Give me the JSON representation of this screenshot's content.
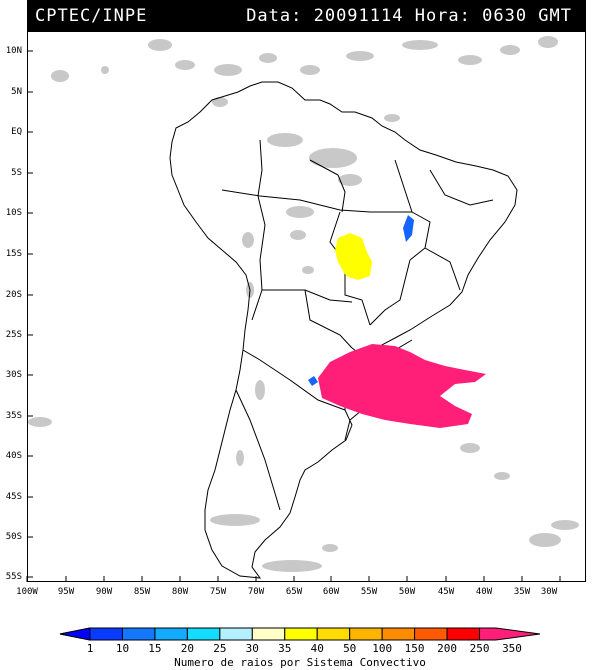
{
  "header": {
    "source": "CPTEC/INPE",
    "datetime": "Data: 20091114 Hora: 0630 GMT"
  },
  "map": {
    "lat_labels": [
      "10N",
      "5N",
      "EQ",
      "5S",
      "10S",
      "15S",
      "20S",
      "25S",
      "30S",
      "35S",
      "40S",
      "45S",
      "50S",
      "55S"
    ],
    "lon_labels": [
      "100W",
      "95W",
      "90W",
      "85W",
      "80W",
      "75W",
      "70W",
      "65W",
      "60W",
      "55W",
      "50W",
      "45W",
      "40W",
      "35W",
      "30W"
    ],
    "colors": {
      "cloud": "#c8c8c8",
      "system_yellow": "#ffff00",
      "system_magenta": "#ff1e78",
      "system_blue": "#1464ff",
      "borders": "#000000"
    }
  },
  "legend": {
    "title": "Numero de raios por Sistema Convectivo",
    "labels": [
      "1",
      "10",
      "15",
      "20",
      "25",
      "30",
      "35",
      "40",
      "50",
      "100",
      "150",
      "200",
      "250",
      "350"
    ],
    "colors": [
      "#0000ff",
      "#0a3cff",
      "#1478ff",
      "#14aaff",
      "#14dcff",
      "#b4f0ff",
      "#ffffc8",
      "#ffff00",
      "#ffdc00",
      "#ffb400",
      "#ff8c00",
      "#ff5a00",
      "#ff0000",
      "#ff1e78"
    ]
  }
}
